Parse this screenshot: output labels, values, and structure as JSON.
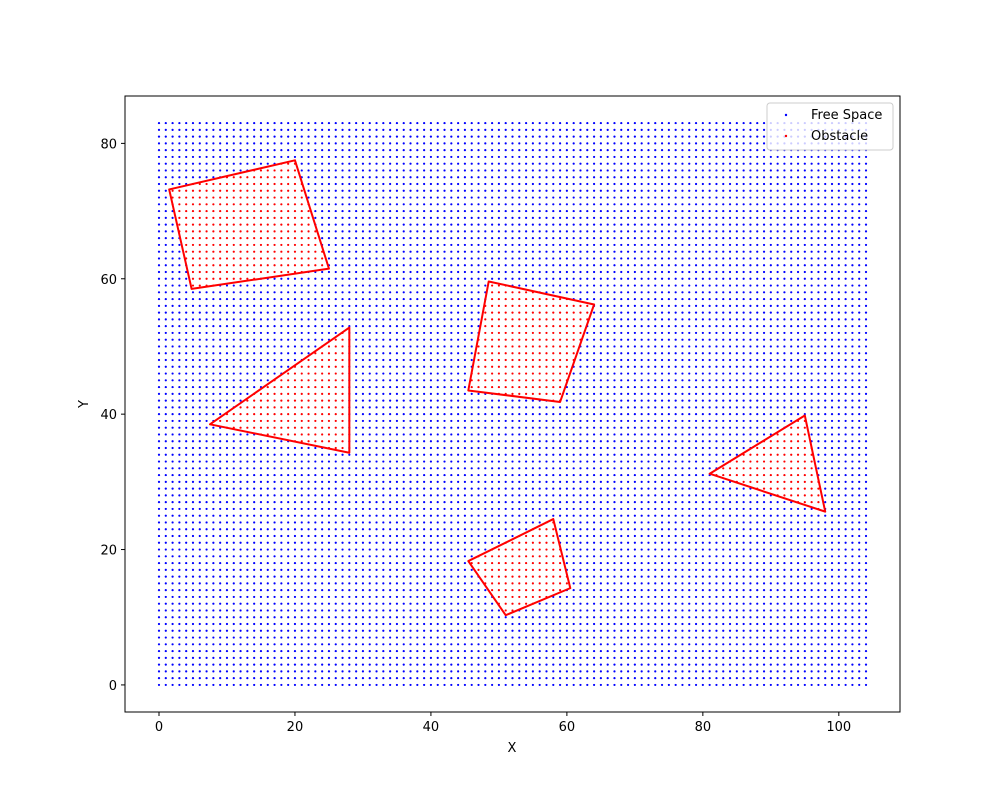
{
  "chart_data": {
    "type": "scatter",
    "title": "",
    "xlabel": "X",
    "ylabel": "Y",
    "xlim": [
      -5,
      109
    ],
    "ylim": [
      -4,
      87
    ],
    "grid": false,
    "legend_position": "top-right",
    "x_ticks": [
      0,
      20,
      40,
      60,
      80,
      100
    ],
    "y_ticks": [
      0,
      20,
      40,
      60,
      80
    ],
    "grid_points": {
      "x_start": 0,
      "x_end": 104,
      "x_step": 1,
      "y_start": 0,
      "y_end": 83,
      "y_step": 1
    },
    "series": [
      {
        "name": "Free Space",
        "color": "#0000ff",
        "marker": "point"
      },
      {
        "name": "Obstacle",
        "color": "#ff0000",
        "marker": "point"
      }
    ],
    "obstacles": [
      {
        "vertices": [
          [
            1.5,
            73.2
          ],
          [
            20.0,
            77.5
          ],
          [
            25.0,
            61.5
          ],
          [
            4.8,
            58.5
          ]
        ]
      },
      {
        "vertices": [
          [
            7.5,
            38.5
          ],
          [
            28.0,
            52.8
          ],
          [
            28.0,
            34.3
          ]
        ]
      },
      {
        "vertices": [
          [
            48.5,
            59.6
          ],
          [
            64.0,
            56.2
          ],
          [
            59.0,
            41.8
          ],
          [
            45.5,
            43.5
          ]
        ]
      },
      {
        "vertices": [
          [
            81.0,
            31.2
          ],
          [
            95.0,
            39.8
          ],
          [
            98.0,
            25.6
          ]
        ]
      },
      {
        "vertices": [
          [
            45.5,
            18.3
          ],
          [
            58.0,
            24.5
          ],
          [
            60.5,
            14.3
          ],
          [
            51.0,
            10.3
          ]
        ]
      }
    ],
    "obstacle_outline_color": "#ff0000"
  }
}
